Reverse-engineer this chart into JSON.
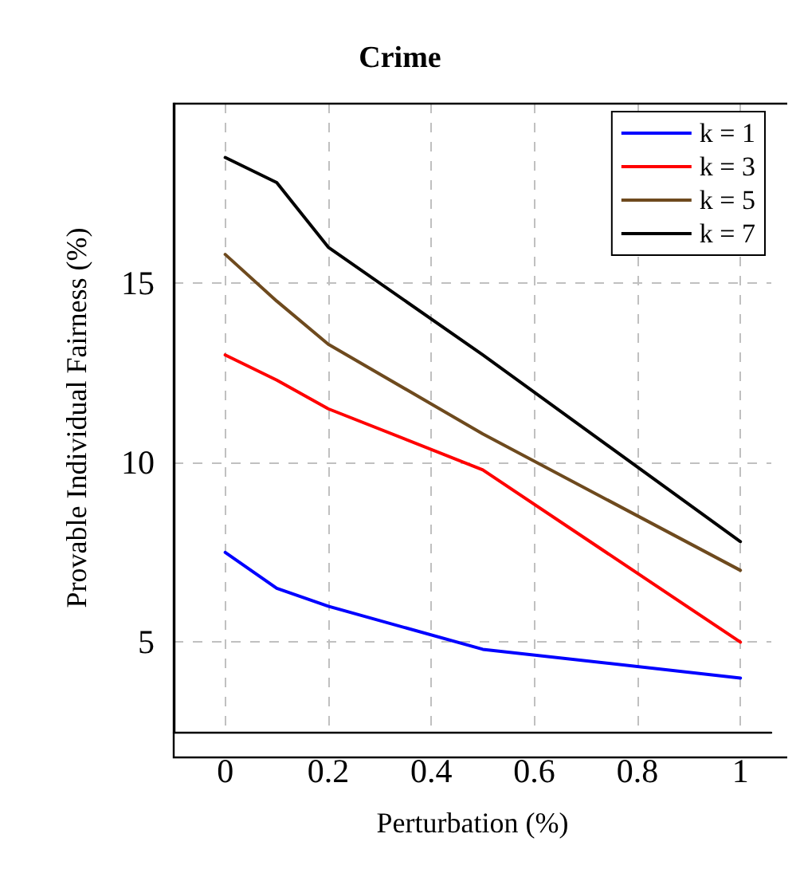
{
  "chart_data": {
    "type": "line",
    "title": "Crime",
    "xlabel": "Perturbation (%)",
    "ylabel": "Provable Individual Fairness (%)",
    "x": [
      0,
      0.1,
      0.2,
      0.5,
      1
    ],
    "series": [
      {
        "name": "k = 1",
        "color": "#0000ff",
        "values": [
          7.5,
          6.5,
          6.0,
          4.8,
          4.0
        ]
      },
      {
        "name": "k = 3",
        "color": "#ff0000",
        "values": [
          13.0,
          12.3,
          11.5,
          9.8,
          5.0
        ]
      },
      {
        "name": "k = 5",
        "color": "#6e4a1e",
        "values": [
          15.8,
          14.5,
          13.3,
          10.8,
          7.0
        ]
      },
      {
        "name": "k = 7",
        "color": "#000000",
        "values": [
          18.5,
          17.8,
          16.0,
          13.0,
          7.8
        ]
      }
    ],
    "xlim": [
      -0.1,
      1.06
    ],
    "xticks": [
      0,
      0.2,
      0.4,
      0.6,
      0.8,
      1
    ],
    "ylim": [
      2.5,
      20
    ],
    "yticks": [
      5,
      10,
      15
    ],
    "grid": true,
    "legend": "top right",
    "marker": "none",
    "line_style": "solid"
  }
}
